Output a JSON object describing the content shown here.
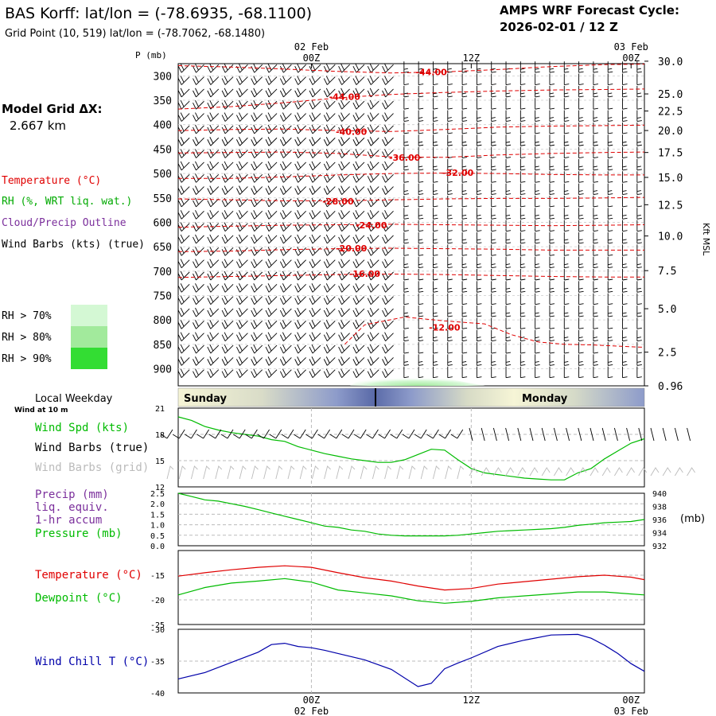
{
  "header": {
    "title": "BAS Korff:  lat/lon = (-78.6935, -68.1100)",
    "subtitle": "Grid Point (10, 519) lat/lon = (-78.7062, -68.1480)",
    "cycle_label": "AMPS WRF Forecast Cycle:",
    "cycle_value": "2026-02-01 / 12  Z"
  },
  "left_panel": {
    "grid_label": "Model Grid ΔX:",
    "grid_value": "2.667 km",
    "legend_temperature": "Temperature (°C)",
    "legend_rh": "RH (%, WRT liq. wat.)",
    "legend_cloud": "Cloud/Precip Outline",
    "legend_wind": "Wind Barbs (kts) (true)",
    "rh_levels": [
      "RH > 70%",
      "RH > 80%",
      "RH > 90%"
    ],
    "rh_colors": [
      "#d4f8d4",
      "#a2ea9c",
      "#33dd33"
    ]
  },
  "colors": {
    "temperature": "#e00000",
    "dewpoint": "#00bb00",
    "windchill": "#0000aa",
    "wind_speed": "#00bb00",
    "precip_label": "#7b2f9c",
    "grid_barbs": "#bbbbbb"
  },
  "chart_data": [
    {
      "type": "line",
      "name": "cross-section",
      "ylabel_left": "P (mb)",
      "ylabel_right": "Kft MSL",
      "pressure_ticks": [
        300,
        350,
        400,
        450,
        500,
        550,
        600,
        650,
        700,
        750,
        800,
        850,
        900
      ],
      "height_ticks": [
        "30.0",
        "25.0",
        "22.5",
        "20.0",
        "17.5",
        "15.0",
        "12.5",
        "10.0",
        "7.5",
        "5.0",
        "2.5",
        "0.96"
      ],
      "height_tick_pressures": [
        270,
        337,
        372,
        412,
        457,
        508,
        564,
        628,
        699,
        777,
        866,
        935
      ],
      "x_ticks": [
        {
          "x": 12,
          "label": "00Z",
          "date": "02 Feb"
        },
        {
          "x": 24,
          "label": "12Z",
          "date": ""
        },
        {
          "x": 36,
          "label": "00Z",
          "date": "03 Feb"
        }
      ],
      "xlim": [
        2,
        37
      ],
      "ylim": [
        275,
        935
      ],
      "isotherm_labels": [
        {
          "label": "-44.00",
          "x": 21,
          "p": 292
        },
        {
          "label": "-44.00",
          "x": 14.5,
          "p": 343
        },
        {
          "label": "-40.00",
          "x": 15,
          "p": 414
        },
        {
          "label": "-36.00",
          "x": 19,
          "p": 467
        },
        {
          "label": "-32.00",
          "x": 23,
          "p": 498
        },
        {
          "label": "-28.00",
          "x": 14,
          "p": 557
        },
        {
          "label": "-24.00",
          "x": 16.5,
          "p": 606
        },
        {
          "label": "-20.00",
          "x": 15,
          "p": 653
        },
        {
          "label": "-16.00",
          "x": 16,
          "p": 705
        },
        {
          "label": "-12.00",
          "x": 22,
          "p": 815
        }
      ],
      "isotherm_paths": [
        {
          "x": [
            2,
            6,
            10,
            14,
            18,
            22,
            26,
            30,
            34,
            37
          ],
          "p": [
            279,
            282,
            286,
            291,
            294,
            292,
            287,
            281,
            277,
            276
          ]
        },
        {
          "x": [
            2,
            6,
            10,
            14,
            18,
            22,
            26,
            30,
            34,
            37
          ],
          "p": [
            368,
            363,
            355,
            345,
            338,
            334,
            331,
            329,
            328,
            327
          ]
        },
        {
          "x": [
            2,
            6,
            10,
            14,
            18,
            22,
            26,
            30,
            34,
            37
          ],
          "p": [
            412,
            410,
            409,
            412,
            414,
            410,
            405,
            403,
            402,
            401
          ]
        },
        {
          "x": [
            2,
            6,
            10,
            14,
            18,
            22,
            26,
            30,
            34,
            37
          ],
          "p": [
            458,
            457,
            456,
            459,
            466,
            467,
            462,
            459,
            457,
            456
          ]
        },
        {
          "x": [
            2,
            6,
            10,
            14,
            18,
            22,
            26,
            30,
            34,
            37
          ],
          "p": [
            510,
            510,
            507,
            503,
            500,
            499,
            500,
            502,
            503,
            503
          ]
        },
        {
          "x": [
            2,
            6,
            10,
            14,
            18,
            22,
            26,
            30,
            34,
            37
          ],
          "p": [
            552,
            554,
            556,
            556,
            554,
            552,
            551,
            551,
            550,
            549
          ]
        },
        {
          "x": [
            2,
            6,
            10,
            14,
            18,
            22,
            26,
            30,
            34,
            37
          ],
          "p": [
            610,
            608,
            606,
            605,
            604,
            605,
            606,
            607,
            606,
            605
          ]
        },
        {
          "x": [
            2,
            6,
            10,
            14,
            18,
            22,
            26,
            30,
            34,
            37
          ],
          "p": [
            660,
            659,
            656,
            654,
            653,
            654,
            655,
            657,
            657,
            657
          ]
        },
        {
          "x": [
            2,
            6,
            10,
            14,
            18,
            22,
            26,
            30,
            34,
            37
          ],
          "p": [
            713,
            711,
            709,
            707,
            706,
            707,
            709,
            711,
            712,
            712
          ]
        },
        {
          "x": [
            14.5,
            16,
            19,
            22,
            25,
            27,
            29,
            31,
            33,
            36,
            37
          ],
          "p": [
            850,
            810,
            794,
            802,
            808,
            830,
            845,
            850,
            851,
            855,
            856
          ]
        }
      ]
    },
    {
      "type": "line",
      "name": "wind",
      "ylim": [
        12,
        21
      ],
      "yticks": [
        12,
        15,
        18,
        21
      ],
      "series": [
        {
          "name": "Wind Spd (kts)",
          "x": [
            2,
            3,
            4,
            5,
            6,
            7,
            8,
            9,
            10,
            11,
            12,
            13,
            14,
            15,
            16,
            17,
            18,
            19,
            20,
            21,
            22,
            23,
            24,
            25,
            26,
            27,
            28,
            29,
            30,
            31,
            32,
            33,
            34,
            35,
            36,
            37
          ],
          "values": [
            20.0,
            19.6,
            18.9,
            18.5,
            18.2,
            18.0,
            17.8,
            17.4,
            17.2,
            16.6,
            16.2,
            15.8,
            15.5,
            15.2,
            15.0,
            14.8,
            14.8,
            15.1,
            15.7,
            16.3,
            16.2,
            15.1,
            14.1,
            13.6,
            13.4,
            13.2,
            13.0,
            12.9,
            12.8,
            12.8,
            13.6,
            14.1,
            15.2,
            16.1,
            17.0,
            17.5
          ]
        }
      ],
      "labels": [
        "Wind Spd (kts)",
        "Wind Barbs (true)",
        "Wind Barbs (grid)"
      ],
      "weekday_label": "Local Weekday",
      "weekday_sub": "Wind at 10 m",
      "weekdays": [
        "Sunday",
        "Monday"
      ]
    },
    {
      "type": "line",
      "name": "precip-pressure",
      "ylim_left": [
        0,
        2.5
      ],
      "yticks_left": [
        "0.0",
        "0.5",
        "1.0",
        "1.5",
        "2.0",
        "2.5"
      ],
      "ylim_right": [
        932,
        940
      ],
      "yticks_right": [
        "932",
        "934",
        "936",
        "938",
        "940"
      ],
      "right_unit": "(mb)",
      "series": [
        {
          "name": "Pressure (mb)",
          "x": [
            2,
            3,
            4,
            5,
            6,
            7,
            8,
            9,
            10,
            11,
            12,
            13,
            14,
            15,
            16,
            17,
            18,
            19,
            20,
            21,
            22,
            23,
            24,
            25,
            26,
            27,
            28,
            29,
            30,
            31,
            32,
            33,
            34,
            35,
            36,
            37
          ],
          "values": [
            940.0,
            939.5,
            939.0,
            938.8,
            938.4,
            938.0,
            937.5,
            937.0,
            936.5,
            936.0,
            935.5,
            935.0,
            934.8,
            934.4,
            934.2,
            933.8,
            933.6,
            933.5,
            933.5,
            933.5,
            933.5,
            933.6,
            933.8,
            934.0,
            934.2,
            934.3,
            934.4,
            934.5,
            934.6,
            934.8,
            935.1,
            935.3,
            935.5,
            935.6,
            935.7,
            936.0
          ]
        }
      ],
      "labels": [
        "Precip (mm)",
        "liq. equiv.",
        "1-hr accum",
        "Pressure (mb)"
      ]
    },
    {
      "type": "line",
      "name": "temperature",
      "ylim": [
        -25,
        -10
      ],
      "yticks": [
        -25,
        -20,
        -15
      ],
      "series": [
        {
          "name": "Temperature (°C)",
          "x": [
            2,
            4,
            6,
            8,
            10,
            12,
            14,
            16,
            18,
            20,
            22,
            24,
            26,
            28,
            30,
            32,
            34,
            36,
            37
          ],
          "values": [
            -15.2,
            -14.5,
            -13.9,
            -13.4,
            -13.1,
            -13.4,
            -14.5,
            -15.5,
            -16.2,
            -17.2,
            -18.0,
            -17.7,
            -16.8,
            -16.3,
            -15.8,
            -15.3,
            -15.0,
            -15.4,
            -15.9
          ]
        },
        {
          "name": "Dewpoint (°C)",
          "x": [
            2,
            4,
            6,
            8,
            10,
            12,
            14,
            16,
            18,
            20,
            22,
            24,
            26,
            28,
            30,
            32,
            34,
            36,
            37
          ],
          "values": [
            -19.0,
            -17.5,
            -16.6,
            -16.2,
            -15.7,
            -16.4,
            -18.0,
            -18.6,
            -19.2,
            -20.2,
            -20.7,
            -20.3,
            -19.6,
            -19.2,
            -18.8,
            -18.4,
            -18.4,
            -18.8,
            -19.0
          ]
        }
      ],
      "labels": [
        "Temperature (°C)",
        "Dewpoint (°C)"
      ]
    },
    {
      "type": "line",
      "name": "windchill",
      "ylim": [
        -40,
        -30
      ],
      "yticks": [
        -40,
        -35,
        -30
      ],
      "series": [
        {
          "name": "Wind Chill T (°C)",
          "x": [
            2,
            4,
            6,
            8,
            9,
            10,
            11,
            12,
            13,
            14,
            16,
            18,
            20,
            21,
            22,
            23,
            24,
            26,
            28,
            30,
            32,
            33,
            34,
            35,
            36,
            37
          ],
          "values": [
            -37.8,
            -36.8,
            -35.2,
            -33.6,
            -32.4,
            -32.2,
            -32.7,
            -32.9,
            -33.3,
            -33.8,
            -34.8,
            -36.3,
            -39.0,
            -38.5,
            -36.2,
            -35.3,
            -34.5,
            -32.7,
            -31.7,
            -30.9,
            -30.8,
            -31.4,
            -32.5,
            -33.8,
            -35.4,
            -36.6
          ]
        }
      ],
      "labels": [
        "Wind Chill T (°C)"
      ]
    }
  ],
  "bottom_axis": {
    "x_ticks": [
      "00Z",
      "12Z",
      "00Z"
    ],
    "dates": [
      "02 Feb",
      "03 Feb"
    ]
  }
}
